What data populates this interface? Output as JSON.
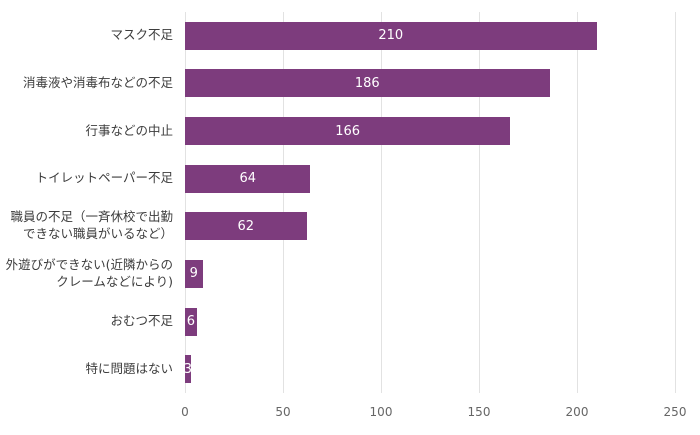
{
  "chart_data": {
    "type": "bar",
    "orientation": "horizontal",
    "title": "",
    "xlabel": "",
    "ylabel": "",
    "categories": [
      "マスク不足",
      "消毒液や消毒布などの不足",
      "行事などの中止",
      "トイレットペーパー不足",
      "職員の不足（一斉休校で出勤できない職員がいるなど）",
      "外遊びができない(近隣からのクレームなどにより)",
      "おむつ不足",
      "特に問題はない"
    ],
    "values": [
      210,
      186,
      166,
      64,
      62,
      9,
      6,
      3
    ],
    "xlim": [
      0,
      250
    ],
    "xticks": [
      0,
      50,
      100,
      150,
      200,
      250
    ],
    "grid": true,
    "legend": "none",
    "bar_color": "#7d3c7d",
    "value_label_color": "#ffffff",
    "axis_label_color": "#666666",
    "category_label_color": "#3c3c3c",
    "gridline_color": "#e2e2e2"
  }
}
